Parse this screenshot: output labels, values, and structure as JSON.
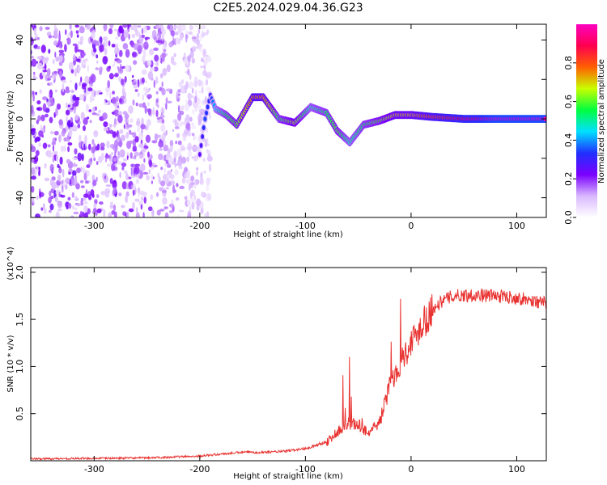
{
  "title": "C2E5.2024.029.04.36.G23",
  "chart_data": [
    {
      "type": "heatmap",
      "xlabel": "Height of straight line (km)",
      "ylabel": "Frequency (Hz)",
      "xlim": [
        -360,
        128
      ],
      "ylim": [
        -50,
        48
      ],
      "xticks": [
        -300,
        -200,
        -100,
        0,
        100
      ],
      "yticks": [
        -40,
        -20,
        0,
        20,
        40
      ],
      "colorbar": {
        "label": "Normalized spectral amplitude",
        "range": [
          0,
          1
        ],
        "ticks": [
          0.0,
          0.2,
          0.4,
          0.6,
          0.8
        ],
        "colormap": [
          "#ffffff",
          "#d9b8ff",
          "#7a00ff",
          "#2030ff",
          "#00e0ff",
          "#00ff40",
          "#c8ff00",
          "#ff6000",
          "#ff0050",
          "#ff00c0"
        ]
      },
      "noise_region": {
        "x": [
          -360,
          -190
        ],
        "y": [
          -50,
          48
        ],
        "amplitude": 0.25
      },
      "ridge": [
        {
          "x": -200,
          "y": -18,
          "amp": 0.25
        },
        {
          "x": -195,
          "y": 0,
          "amp": 0.35
        },
        {
          "x": -190,
          "y": 12,
          "amp": 0.3
        },
        {
          "x": -185,
          "y": 5,
          "amp": 0.45
        },
        {
          "x": -175,
          "y": 2,
          "amp": 0.55
        },
        {
          "x": -165,
          "y": -3,
          "amp": 0.6
        },
        {
          "x": -150,
          "y": 11,
          "amp": 0.75
        },
        {
          "x": -140,
          "y": 11,
          "amp": 0.75
        },
        {
          "x": -125,
          "y": 0,
          "amp": 0.55
        },
        {
          "x": -110,
          "y": -2,
          "amp": 0.65
        },
        {
          "x": -95,
          "y": 6,
          "amp": 0.5
        },
        {
          "x": -80,
          "y": 3,
          "amp": 0.55
        },
        {
          "x": -70,
          "y": -6,
          "amp": 0.6
        },
        {
          "x": -58,
          "y": -12,
          "amp": 0.5
        },
        {
          "x": -45,
          "y": -3,
          "amp": 0.55
        },
        {
          "x": -30,
          "y": -1,
          "amp": 0.6
        },
        {
          "x": -15,
          "y": 2,
          "amp": 0.7
        },
        {
          "x": 0,
          "y": 2,
          "amp": 0.7
        },
        {
          "x": 20,
          "y": 1,
          "amp": 0.8
        },
        {
          "x": 50,
          "y": 0,
          "amp": 0.9
        },
        {
          "x": 80,
          "y": 0,
          "amp": 1.0
        },
        {
          "x": 128,
          "y": 0,
          "amp": 1.0
        }
      ]
    },
    {
      "type": "line",
      "xlabel": "Height of straight line (km)",
      "ylabel": "SNR (10 * v/v)",
      "y_multiplier": "(x10^4)",
      "xlim": [
        -360,
        128
      ],
      "ylim": [
        0,
        2.05
      ],
      "xticks": [
        -300,
        -200,
        -100,
        0,
        100
      ],
      "yticks": [
        0.5,
        1.0,
        1.5,
        2.0
      ],
      "series": [
        {
          "color": "#e8312f",
          "noise": 0.06,
          "x": [
            -360,
            -250,
            -200,
            -180,
            -160,
            -140,
            -120,
            -100,
            -80,
            -70,
            -60,
            -50,
            -40,
            -30,
            -20,
            -10,
            0,
            10,
            20,
            30,
            40,
            60,
            80,
            100,
            128
          ],
          "y": [
            0.02,
            0.03,
            0.05,
            0.07,
            0.09,
            0.09,
            0.1,
            0.13,
            0.2,
            0.3,
            0.4,
            0.38,
            0.3,
            0.4,
            0.8,
            1.05,
            1.25,
            1.45,
            1.6,
            1.7,
            1.75,
            1.76,
            1.75,
            1.73,
            1.67
          ]
        }
      ]
    }
  ]
}
